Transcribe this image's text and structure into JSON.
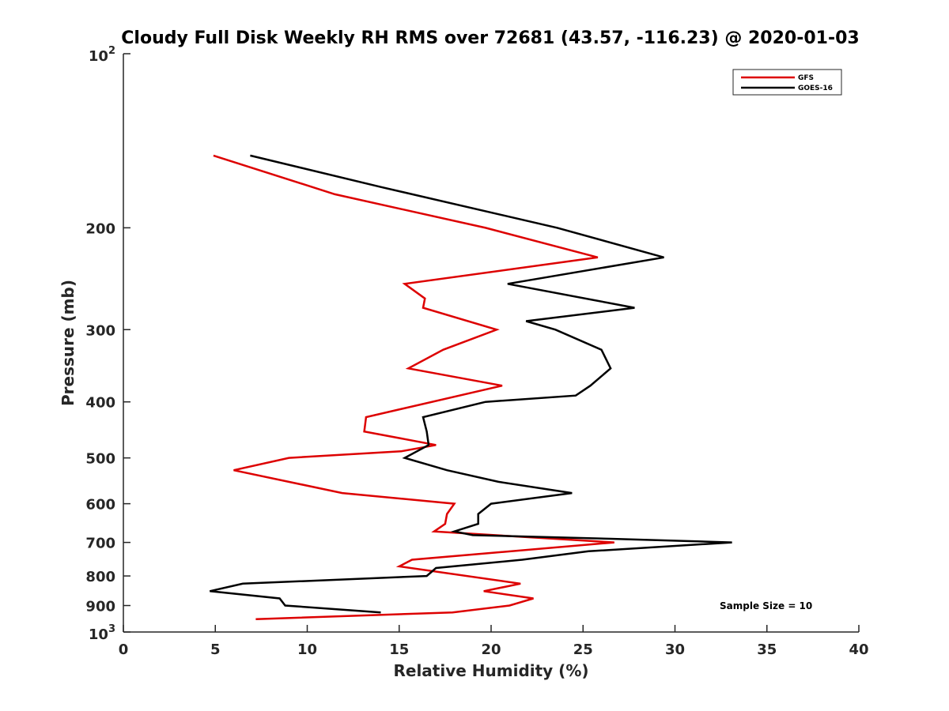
{
  "chart_data": {
    "type": "line",
    "title": "Cloudy Full Disk Weekly RH RMS over 72681 (43.57, -116.23) @ 2020-01-03",
    "xlabel": "Relative Humidity (%)",
    "ylabel": "Pressure (mb)",
    "xlim": [
      0,
      40
    ],
    "ylim": [
      100,
      1000
    ],
    "y_scale": "log",
    "y_reversed": true,
    "grid": false,
    "legend_position": "top-right",
    "x_ticks": [
      {
        "value": 0,
        "label": "0"
      },
      {
        "value": 5,
        "label": "5"
      },
      {
        "value": 10,
        "label": "10"
      },
      {
        "value": 15,
        "label": "15"
      },
      {
        "value": 20,
        "label": "20"
      },
      {
        "value": 25,
        "label": "25"
      },
      {
        "value": 30,
        "label": "30"
      },
      {
        "value": 35,
        "label": "35"
      },
      {
        "value": 40,
        "label": "40"
      }
    ],
    "y_ticks": [
      {
        "value": 100,
        "base": "10",
        "exp": "2"
      },
      {
        "value": 200,
        "label": "200"
      },
      {
        "value": 300,
        "label": "300"
      },
      {
        "value": 400,
        "label": "400"
      },
      {
        "value": 500,
        "label": "500"
      },
      {
        "value": 600,
        "label": "600"
      },
      {
        "value": 700,
        "label": "700"
      },
      {
        "value": 800,
        "label": "800"
      },
      {
        "value": 900,
        "label": "900"
      },
      {
        "value": 1000,
        "base": "10",
        "exp": "3"
      }
    ],
    "annotation": "Sample Size = 10",
    "series": [
      {
        "name": "GFS",
        "color": "#dd0000",
        "points": [
          {
            "x": 4.9,
            "y": 150
          },
          {
            "x": 11.5,
            "y": 175
          },
          {
            "x": 19.7,
            "y": 200
          },
          {
            "x": 25.8,
            "y": 225
          },
          {
            "x": 15.3,
            "y": 250
          },
          {
            "x": 16.4,
            "y": 265
          },
          {
            "x": 16.3,
            "y": 275
          },
          {
            "x": 20.3,
            "y": 300
          },
          {
            "x": 17.4,
            "y": 325
          },
          {
            "x": 15.5,
            "y": 350
          },
          {
            "x": 20.6,
            "y": 375
          },
          {
            "x": 13.2,
            "y": 425
          },
          {
            "x": 13.1,
            "y": 450
          },
          {
            "x": 17.0,
            "y": 475
          },
          {
            "x": 15.1,
            "y": 487
          },
          {
            "x": 9.0,
            "y": 500
          },
          {
            "x": 6.0,
            "y": 525
          },
          {
            "x": 11.9,
            "y": 575
          },
          {
            "x": 18.0,
            "y": 600
          },
          {
            "x": 17.6,
            "y": 625
          },
          {
            "x": 17.5,
            "y": 650
          },
          {
            "x": 16.9,
            "y": 670
          },
          {
            "x": 26.7,
            "y": 700
          },
          {
            "x": 15.7,
            "y": 750
          },
          {
            "x": 15.0,
            "y": 770
          },
          {
            "x": 21.6,
            "y": 825
          },
          {
            "x": 19.6,
            "y": 850
          },
          {
            "x": 22.3,
            "y": 875
          },
          {
            "x": 21.0,
            "y": 900
          },
          {
            "x": 17.9,
            "y": 925
          },
          {
            "x": 7.2,
            "y": 950
          }
        ]
      },
      {
        "name": "GOES-16",
        "color": "#000000",
        "points": [
          {
            "x": 6.9,
            "y": 150
          },
          {
            "x": 14.0,
            "y": 170
          },
          {
            "x": 23.6,
            "y": 200
          },
          {
            "x": 29.4,
            "y": 225
          },
          {
            "x": 20.9,
            "y": 250
          },
          {
            "x": 27.8,
            "y": 275
          },
          {
            "x": 21.9,
            "y": 290
          },
          {
            "x": 23.5,
            "y": 300
          },
          {
            "x": 26.0,
            "y": 325
          },
          {
            "x": 26.5,
            "y": 350
          },
          {
            "x": 25.4,
            "y": 375
          },
          {
            "x": 24.6,
            "y": 390
          },
          {
            "x": 19.7,
            "y": 400
          },
          {
            "x": 16.3,
            "y": 425
          },
          {
            "x": 16.5,
            "y": 450
          },
          {
            "x": 16.6,
            "y": 475
          },
          {
            "x": 15.3,
            "y": 500
          },
          {
            "x": 17.6,
            "y": 525
          },
          {
            "x": 20.4,
            "y": 550
          },
          {
            "x": 24.4,
            "y": 575
          },
          {
            "x": 20.0,
            "y": 600
          },
          {
            "x": 19.3,
            "y": 625
          },
          {
            "x": 19.3,
            "y": 650
          },
          {
            "x": 18.0,
            "y": 670
          },
          {
            "x": 19.0,
            "y": 680
          },
          {
            "x": 26.5,
            "y": 690
          },
          {
            "x": 33.1,
            "y": 700
          },
          {
            "x": 25.3,
            "y": 725
          },
          {
            "x": 21.7,
            "y": 750
          },
          {
            "x": 17.0,
            "y": 775
          },
          {
            "x": 16.5,
            "y": 800
          },
          {
            "x": 6.5,
            "y": 825
          },
          {
            "x": 4.7,
            "y": 850
          },
          {
            "x": 8.5,
            "y": 875
          },
          {
            "x": 8.8,
            "y": 900
          },
          {
            "x": 14.0,
            "y": 925
          }
        ]
      }
    ]
  }
}
